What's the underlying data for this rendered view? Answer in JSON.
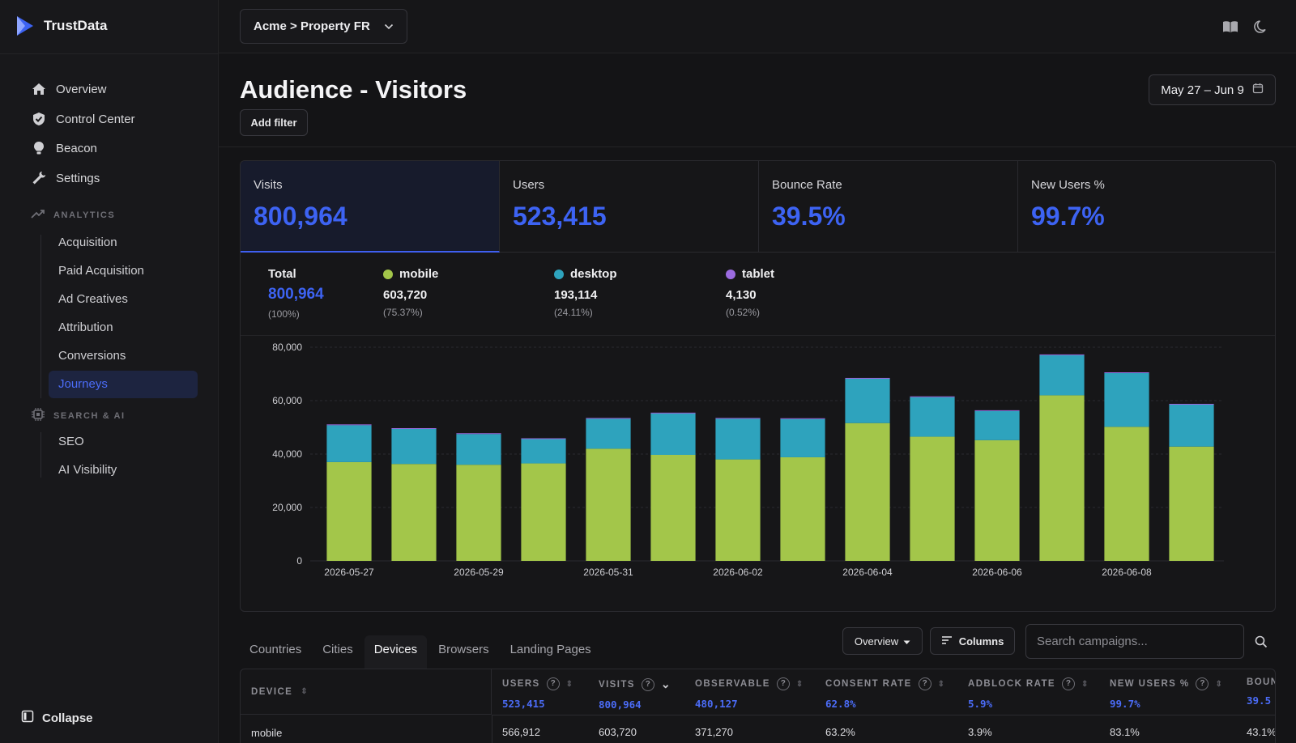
{
  "app": {
    "name": "TrustData"
  },
  "sidebar": {
    "nav": [
      {
        "label": "Overview",
        "icon": "home-icon"
      },
      {
        "label": "Control Center",
        "icon": "shield-icon"
      },
      {
        "label": "Beacon",
        "icon": "bulb-icon"
      },
      {
        "label": "Settings",
        "icon": "wrench-icon"
      }
    ],
    "analytics_title": "ANALYTICS",
    "analytics_items": [
      "Acquisition",
      "Paid Acquisition",
      "Ad Creatives",
      "Attribution",
      "Conversions",
      "Journeys"
    ],
    "active_item": "Journeys",
    "search_title": "SEARCH & AI",
    "search_items": [
      "SEO",
      "AI Visibility"
    ],
    "collapse_label": "Collapse"
  },
  "topbar": {
    "property": "Acme > Property FR"
  },
  "header": {
    "title": "Audience - Visitors",
    "add_filter": "Add filter",
    "date_range": "May 27 – Jun 9"
  },
  "kpis": [
    {
      "label": "Visits",
      "value": "800,964"
    },
    {
      "label": "Users",
      "value": "523,415"
    },
    {
      "label": "Bounce Rate",
      "value": "39.5%"
    },
    {
      "label": "New Users %",
      "value": "99.7%"
    }
  ],
  "legend": {
    "total": {
      "label": "Total",
      "value": "800,964",
      "pct": "(100%)"
    },
    "items": [
      {
        "name": "mobile",
        "value": "603,720",
        "pct": "(75.37%)",
        "color": "#a3c64a"
      },
      {
        "name": "desktop",
        "value": "193,114",
        "pct": "(24.11%)",
        "color": "#2ea3bd"
      },
      {
        "name": "tablet",
        "value": "4,130",
        "pct": "(0.52%)",
        "color": "#9b6be0"
      }
    ]
  },
  "chart_data": {
    "type": "bar",
    "stacked": true,
    "categories": [
      "2026-05-27",
      "2026-05-28",
      "2026-05-29",
      "2026-05-30",
      "2026-05-31",
      "2026-06-01",
      "2026-06-02",
      "2026-06-03",
      "2026-06-04",
      "2026-06-05",
      "2026-06-06",
      "2026-06-07",
      "2026-06-08",
      "2026-06-09"
    ],
    "x_tick_labels": [
      "2026-05-27",
      "2026-05-29",
      "2026-05-31",
      "2026-06-02",
      "2026-06-04",
      "2026-06-06",
      "2026-06-08"
    ],
    "series": [
      {
        "name": "mobile",
        "color": "#a3c64a",
        "values": [
          37000,
          36300,
          36000,
          36500,
          42000,
          39700,
          38000,
          38800,
          51600,
          46500,
          45200,
          62000,
          50200,
          42800
        ]
      },
      {
        "name": "desktop",
        "color": "#2ea3bd",
        "values": [
          13800,
          13100,
          11500,
          9100,
          11200,
          15500,
          15200,
          14300,
          16600,
          14800,
          10900,
          15000,
          20100,
          15700
        ]
      },
      {
        "name": "tablet",
        "color": "#9b6be0",
        "values": [
          300,
          300,
          300,
          300,
          300,
          300,
          300,
          300,
          300,
          300,
          300,
          300,
          300,
          300
        ]
      }
    ],
    "ylim": [
      0,
      80000
    ],
    "y_ticks": [
      0,
      20000,
      40000,
      60000,
      80000
    ],
    "y_tick_labels": [
      "0",
      "20,000",
      "40,000",
      "60,000",
      "80,000"
    ],
    "grid": true
  },
  "tabs": [
    {
      "label": "Countries"
    },
    {
      "label": "Cities"
    },
    {
      "label": "Devices",
      "active": true
    },
    {
      "label": "Browsers"
    },
    {
      "label": "Landing Pages"
    }
  ],
  "controls": {
    "overview": "Overview",
    "columns": "Columns",
    "search_placeholder": "Search campaigns..."
  },
  "table": {
    "device_header": "DEVICE",
    "columns": [
      {
        "label": "USERS",
        "total": "523,415"
      },
      {
        "label": "VISITS",
        "total": "800,964"
      },
      {
        "label": "OBSERVABLE",
        "total": "480,127"
      },
      {
        "label": "CONSENT RATE",
        "total": "62.8%"
      },
      {
        "label": "ADBLOCK RATE",
        "total": "5.9%"
      },
      {
        "label": "NEW USERS %",
        "total": "99.7%"
      },
      {
        "label": "BOUN",
        "total": "39.5"
      }
    ],
    "rows": [
      {
        "device": "mobile",
        "cells": [
          "566,912",
          "603,720",
          "371,270",
          "63.2%",
          "3.9%",
          "83.1%",
          "43.1%"
        ]
      }
    ]
  }
}
